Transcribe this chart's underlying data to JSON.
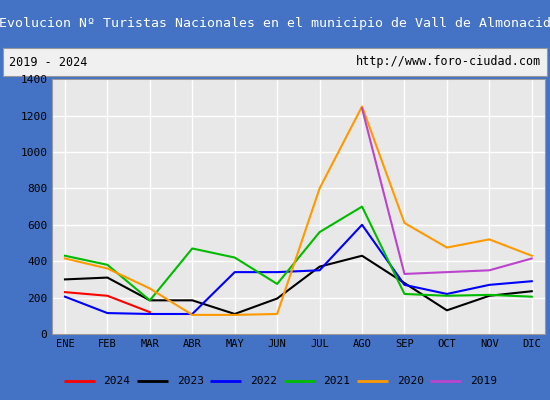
{
  "title": "Evolucion Nº Turistas Nacionales en el municipio de Vall de Almonacid",
  "subtitle_left": "2019 - 2024",
  "subtitle_right": "http://www.foro-ciudad.com",
  "months": [
    "ENE",
    "FEB",
    "MAR",
    "ABR",
    "MAY",
    "JUN",
    "JUL",
    "AGO",
    "SEP",
    "OCT",
    "NOV",
    "DIC"
  ],
  "ylim": [
    0,
    1400
  ],
  "yticks": [
    0,
    200,
    400,
    600,
    800,
    1000,
    1200,
    1400
  ],
  "series": {
    "2024": {
      "data": [
        230,
        210,
        120,
        null,
        null,
        null,
        null,
        null,
        null,
        null,
        null,
        null
      ],
      "color": "#ff0000",
      "linewidth": 1.5
    },
    "2023": {
      "data": [
        300,
        310,
        185,
        185,
        110,
        195,
        370,
        430,
        280,
        130,
        210,
        235
      ],
      "color": "#000000",
      "linewidth": 1.5
    },
    "2022": {
      "data": [
        205,
        115,
        110,
        110,
        340,
        340,
        350,
        600,
        270,
        220,
        270,
        290
      ],
      "color": "#0000ff",
      "linewidth": 1.5
    },
    "2021": {
      "data": [
        430,
        380,
        185,
        470,
        420,
        275,
        560,
        700,
        220,
        210,
        215,
        205
      ],
      "color": "#00bb00",
      "linewidth": 1.5
    },
    "2020": {
      "data": [
        415,
        360,
        250,
        105,
        105,
        110,
        800,
        1250,
        610,
        475,
        520,
        430
      ],
      "color": "#ff9900",
      "linewidth": 1.5
    },
    "2019": {
      "data": [
        null,
        null,
        null,
        null,
        null,
        null,
        null,
        1240,
        330,
        340,
        350,
        415
      ],
      "color": "#bb44cc",
      "linewidth": 1.5
    }
  },
  "title_bg_color": "#4472c4",
  "title_text_color": "#ffffff",
  "plot_bg_color": "#e8e8e8",
  "grid_color": "#ffffff",
  "border_color": "#999999",
  "subtitle_box_color": "#f0f0f0",
  "legend_order": [
    "2024",
    "2023",
    "2022",
    "2021",
    "2020",
    "2019"
  ]
}
